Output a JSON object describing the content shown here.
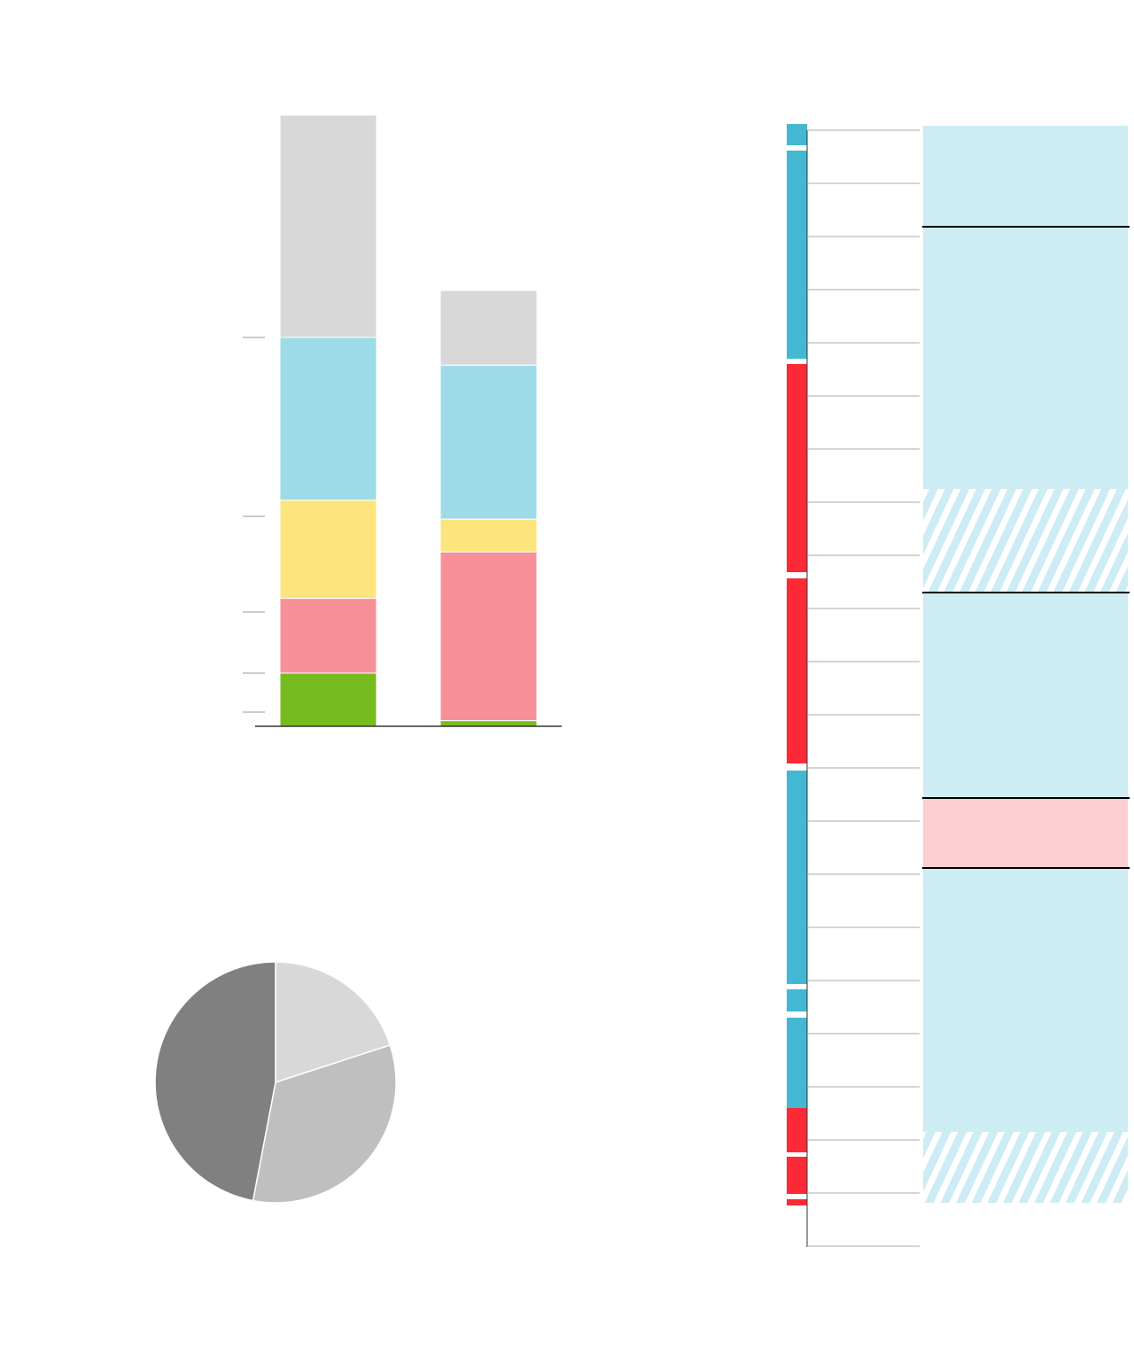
{
  "chart_data": [
    {
      "type": "bar",
      "stacked": true,
      "categories": [
        "",
        ""
      ],
      "series": [
        {
          "color": "#76bc21",
          "values": [
            0.3,
            0.04
          ]
        },
        {
          "color": "#f8909a",
          "values": [
            0.5,
            1.1
          ]
        },
        {
          "color": "#fde57e",
          "values": [
            0.7,
            0.24
          ]
        },
        {
          "color": "#9ddbe8",
          "values": [
            1.0,
            0.95
          ]
        },
        {
          "color": "#d8d8d8",
          "values": [
            2.5,
            0.75
          ]
        }
      ],
      "ylim": [
        0,
        5.0
      ],
      "grid": false,
      "legend": "none"
    },
    {
      "type": "pie",
      "values": [
        20,
        33,
        47
      ],
      "colors": [
        "#d8d8d8",
        "#bfbfbf",
        "#808080"
      ],
      "legend": "none"
    }
  ],
  "timeline": {
    "segment_colors": [
      "#42b8d3",
      "#42b8d3",
      "#fc2a36",
      "#fc2a36",
      "#42b8d3",
      "#42b8d3",
      "#42b8d3",
      "#fc2a36",
      "#fc2a36",
      "#fc2a36"
    ],
    "band_colors": [
      "#cdecf3",
      "#cdecf3",
      "#cdecf3",
      "#fbcfd2",
      "#cdecf3"
    ],
    "rule_color": "#000000"
  }
}
